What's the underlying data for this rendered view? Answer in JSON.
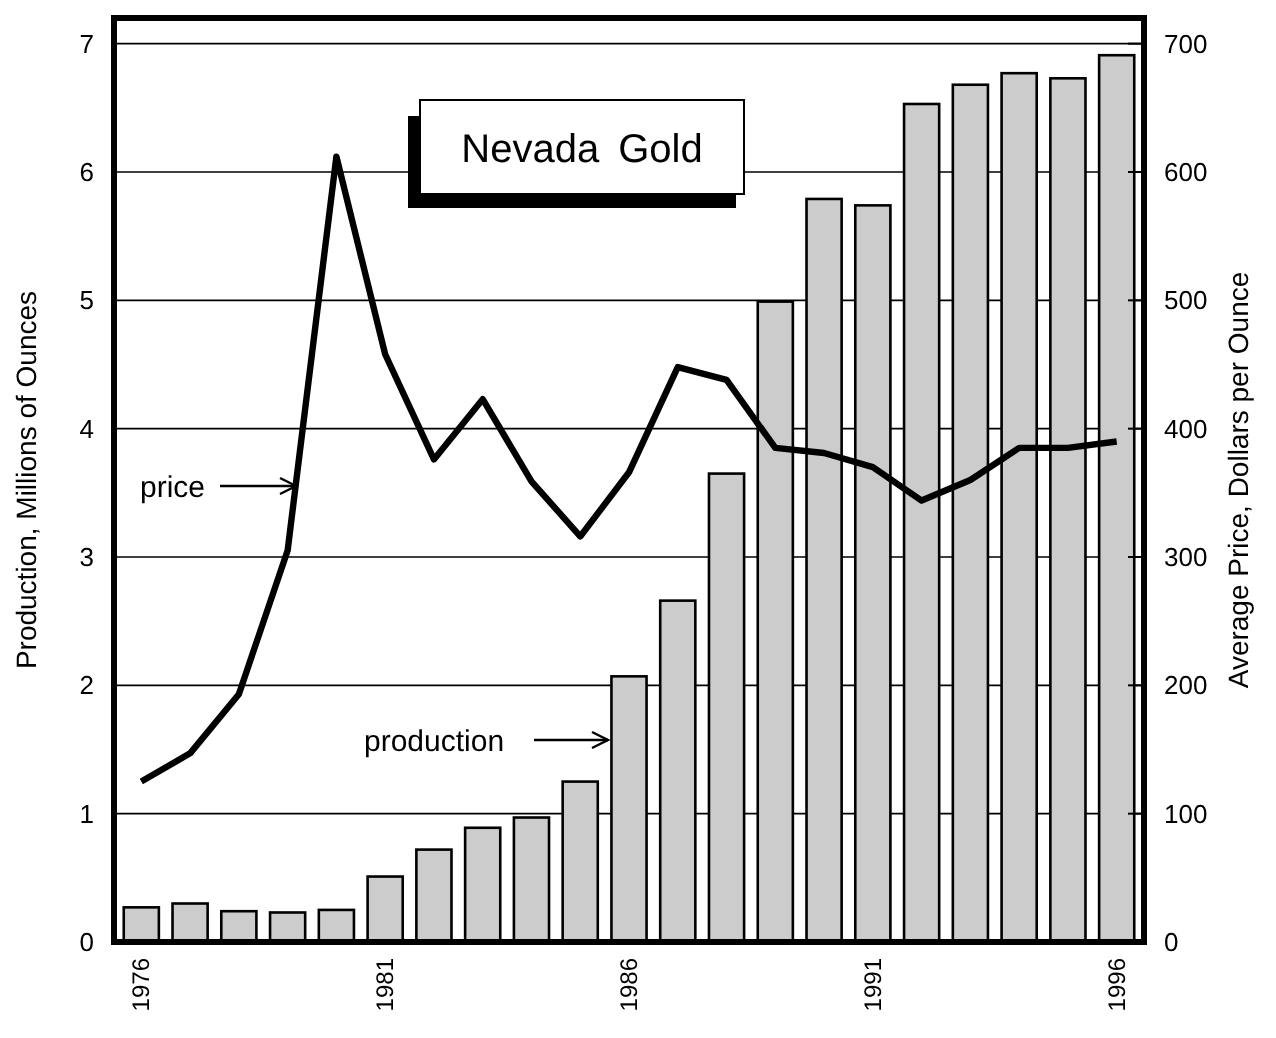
{
  "chart_data": {
    "type": "bar",
    "title": "Nevada Gold",
    "categories": [
      "1976",
      null,
      null,
      null,
      null,
      "1981",
      null,
      null,
      null,
      null,
      "1986",
      null,
      null,
      null,
      null,
      "1991",
      null,
      null,
      null,
      null,
      "1996"
    ],
    "ylabel": "Production, Millions of Ounces",
    "y2label": "Average Price, Dollars per Ounce",
    "series": [
      {
        "name": "production",
        "color": "#cccccc",
        "values": [
          0.27,
          0.3,
          0.24,
          0.23,
          0.25,
          0.51,
          0.72,
          0.89,
          0.97,
          1.25,
          2.07,
          2.66,
          3.65,
          4.99,
          5.79,
          5.74,
          6.53,
          6.68,
          6.77,
          6.73,
          6.91
        ]
      },
      {
        "name": "price",
        "type": "line",
        "axis": "y2",
        "color": "#000000",
        "values": [
          125,
          147,
          193,
          305,
          612,
          458,
          376,
          423,
          359,
          316,
          366,
          448,
          438,
          385,
          381,
          370,
          344,
          360,
          385,
          385,
          390
        ]
      }
    ],
    "ylim": [
      0,
      7.2
    ],
    "yticks": [
      0,
      1,
      2,
      3,
      4,
      5,
      6,
      7
    ],
    "y2lim": [
      0,
      720
    ],
    "y2ticks": [
      0,
      100,
      200,
      300,
      400,
      500,
      600,
      700
    ],
    "grid": "y",
    "legend": "left"
  }
}
